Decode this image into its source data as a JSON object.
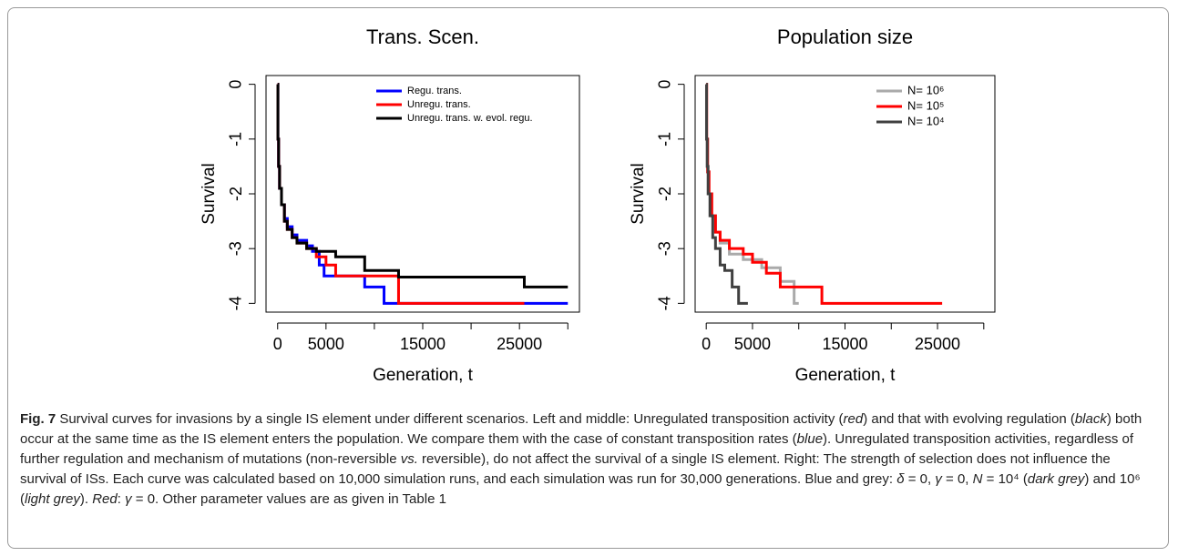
{
  "chart_data": [
    {
      "type": "line",
      "drawstyle": "steps-post",
      "title": "Trans. Scen.",
      "x_label": "Generation, t",
      "y_label": "Survival",
      "xlim": [
        -1200,
        31200
      ],
      "ylim": [
        -4.16,
        0.16
      ],
      "xticks": [
        0,
        5000,
        {
          "value": 10000,
          "label": null
        },
        15000,
        {
          "value": 20000,
          "label": null
        },
        25000,
        {
          "value": 30000,
          "label": null
        }
      ],
      "yticks": [
        0,
        -1,
        -2,
        -3,
        -4
      ],
      "legend": "top",
      "series": [
        {
          "name": "Regu. trans.",
          "color": "#0000ff",
          "x": [
            0,
            30,
            100,
            200,
            400,
            700,
            1000,
            1500,
            2000,
            3000,
            3600,
            4300,
            4800,
            9000,
            11000,
            30000
          ],
          "values": [
            0,
            -1,
            -1.5,
            -1.9,
            -2.2,
            -2.45,
            -2.6,
            -2.75,
            -2.85,
            -2.95,
            -3.05,
            -3.3,
            -3.5,
            -3.7,
            -4,
            -4
          ]
        },
        {
          "name": "Unregu. trans.",
          "color": "#ff0000",
          "x": [
            0,
            30,
            100,
            200,
            400,
            700,
            1000,
            1500,
            2000,
            3000,
            4000,
            5000,
            6000,
            12500,
            25500
          ],
          "values": [
            0,
            -1,
            -1.5,
            -1.9,
            -2.2,
            -2.5,
            -2.65,
            -2.8,
            -2.9,
            -3.0,
            -3.15,
            -3.3,
            -3.5,
            -4,
            -4
          ]
        },
        {
          "name": "Unregu. trans. w. evol. regu.",
          "color": "#000000",
          "x": [
            0,
            30,
            100,
            200,
            400,
            700,
            1000,
            1500,
            2000,
            3000,
            4000,
            6000,
            9000,
            12500,
            25500,
            30000
          ],
          "values": [
            0,
            -1,
            -1.5,
            -1.9,
            -2.2,
            -2.5,
            -2.65,
            -2.8,
            -2.9,
            -3.0,
            -3.05,
            -3.15,
            -3.4,
            -3.52,
            -3.7,
            -3.7
          ]
        }
      ]
    },
    {
      "type": "line",
      "drawstyle": "steps-post",
      "title": "Population size",
      "x_label": "Generation, t",
      "y_label": "Survival",
      "xlim": [
        -1200,
        31200
      ],
      "ylim": [
        -4.16,
        0.16
      ],
      "xticks": [
        0,
        5000,
        {
          "value": 10000,
          "label": null
        },
        15000,
        {
          "value": 20000,
          "label": null
        },
        25000,
        {
          "value": 30000,
          "label": null
        }
      ],
      "yticks": [
        0,
        -1,
        -2,
        -3,
        -4
      ],
      "legend": "top-right",
      "series": [
        {
          "name": "N= 10⁶",
          "color": "#aaaaaa",
          "x": [
            0,
            50,
            150,
            300,
            600,
            1000,
            1500,
            2500,
            4000,
            6000,
            8000,
            9500,
            10000
          ],
          "values": [
            0,
            -1,
            -1.6,
            -2.0,
            -2.4,
            -2.7,
            -2.9,
            -3.1,
            -3.2,
            -3.35,
            -3.6,
            -4.0,
            -4.0
          ]
        },
        {
          "name": "N= 10⁵",
          "color": "#ff0000",
          "x": [
            0,
            50,
            150,
            300,
            600,
            1000,
            1500,
            2500,
            4000,
            5000,
            6500,
            8000,
            12500,
            25500
          ],
          "values": [
            0,
            -1,
            -1.6,
            -2.0,
            -2.4,
            -2.7,
            -2.85,
            -3.0,
            -3.1,
            -3.25,
            -3.45,
            -3.7,
            -4,
            -4
          ]
        },
        {
          "name": "N= 10⁴",
          "color": "#404040",
          "x": [
            0,
            30,
            100,
            200,
            400,
            700,
            1000,
            1500,
            2000,
            2800,
            3500,
            4500
          ],
          "values": [
            0,
            -1,
            -1.5,
            -2.0,
            -2.4,
            -2.8,
            -3.0,
            -3.3,
            -3.4,
            -3.7,
            -4.0,
            -4.0
          ]
        }
      ]
    }
  ],
  "caption": [
    {
      "text": "Fig. 7",
      "style": "b"
    },
    {
      "text": " Survival curves for invasions by a single IS element under different scenarios. Left and middle: Unregulated transposition activity ("
    },
    {
      "text": "red",
      "style": "i"
    },
    {
      "text": ") and that with evolving regulation ("
    },
    {
      "text": "black",
      "style": "i"
    },
    {
      "text": ") both occur at the same time as the IS element enters the population. We compare them with the case of constant transposition rates ("
    },
    {
      "text": "blue",
      "style": "i"
    },
    {
      "text": "). Unregulated transposition activities, regardless of further regulation and mechanism of mutations (non-reversible "
    },
    {
      "text": "vs.",
      "style": "i"
    },
    {
      "text": " reversible), do not affect the survival of a single IS element. Right: The strength of selection does not influence the survival of ISs. Each curve was calculated based on 10,000 simulation runs, and each simulation was run for 30,000 generations. Blue and grey: "
    },
    {
      "text": "δ",
      "style": "i"
    },
    {
      "text": " = 0, "
    },
    {
      "text": "γ",
      "style": "i"
    },
    {
      "text": " = 0, "
    },
    {
      "text": "N",
      "style": "i"
    },
    {
      "text": " = 10⁴ ("
    },
    {
      "text": "dark grey",
      "style": "i"
    },
    {
      "text": ") and 10⁶ ("
    },
    {
      "text": "light grey",
      "style": "i"
    },
    {
      "text": "). "
    },
    {
      "text": "Red",
      "style": "i"
    },
    {
      "text": ": "
    },
    {
      "text": "γ",
      "style": "i"
    },
    {
      "text": " = 0. Other parameter values are as given in Table 1"
    }
  ]
}
